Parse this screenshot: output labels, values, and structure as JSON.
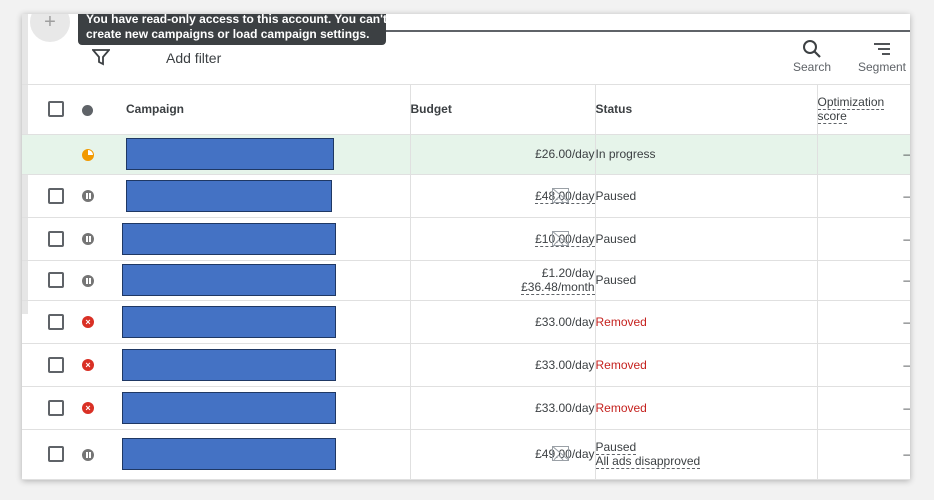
{
  "tooltip": {
    "line1": "You have read-only access to this account. You can't",
    "line2": "create new campaigns or load campaign settings."
  },
  "toolbar": {
    "add_filter_label": "Add filter",
    "search_label": "Search",
    "segment_label": "Segment"
  },
  "table": {
    "headers": {
      "campaign": "Campaign",
      "budget": "Budget",
      "status": "Status",
      "optimization_line1": "Optimization",
      "optimization_line2": "score"
    },
    "rows": [
      {
        "status_icon": "in-progress-icon",
        "budget": "£26.00/day",
        "budget_limited": false,
        "status": "In progress",
        "optimization": "–"
      },
      {
        "status_icon": "paused-icon",
        "budget": "£48.00/day",
        "budget_limited": true,
        "status": "Paused",
        "optimization": "–"
      },
      {
        "status_icon": "paused-icon",
        "budget": "£10.00/day",
        "budget_limited": true,
        "status": "Paused",
        "optimization": "–"
      },
      {
        "status_icon": "paused-icon",
        "budget": "£1.20/day",
        "budget_line2": "£36.48/month",
        "budget_limited": false,
        "status": "Paused",
        "optimization": "–"
      },
      {
        "status_icon": "removed-icon",
        "budget": "£33.00/day",
        "budget_limited": false,
        "status": "Removed",
        "optimization": "–"
      },
      {
        "status_icon": "removed-icon",
        "budget": "£33.00/day",
        "budget_limited": false,
        "status": "Removed",
        "optimization": "–"
      },
      {
        "status_icon": "removed-icon",
        "budget": "£33.00/day",
        "budget_limited": false,
        "status": "Removed",
        "optimization": "–"
      },
      {
        "status_icon": "paused-icon",
        "budget": "£49.00/day",
        "budget_limited": true,
        "status": "Paused",
        "status_line2": "All ads disapproved",
        "optimization": "–"
      }
    ]
  },
  "colors": {
    "redaction": "#4472c4",
    "removed": "#d93025",
    "in_progress": "#f29900",
    "highlight_row": "#e6f4ea"
  }
}
